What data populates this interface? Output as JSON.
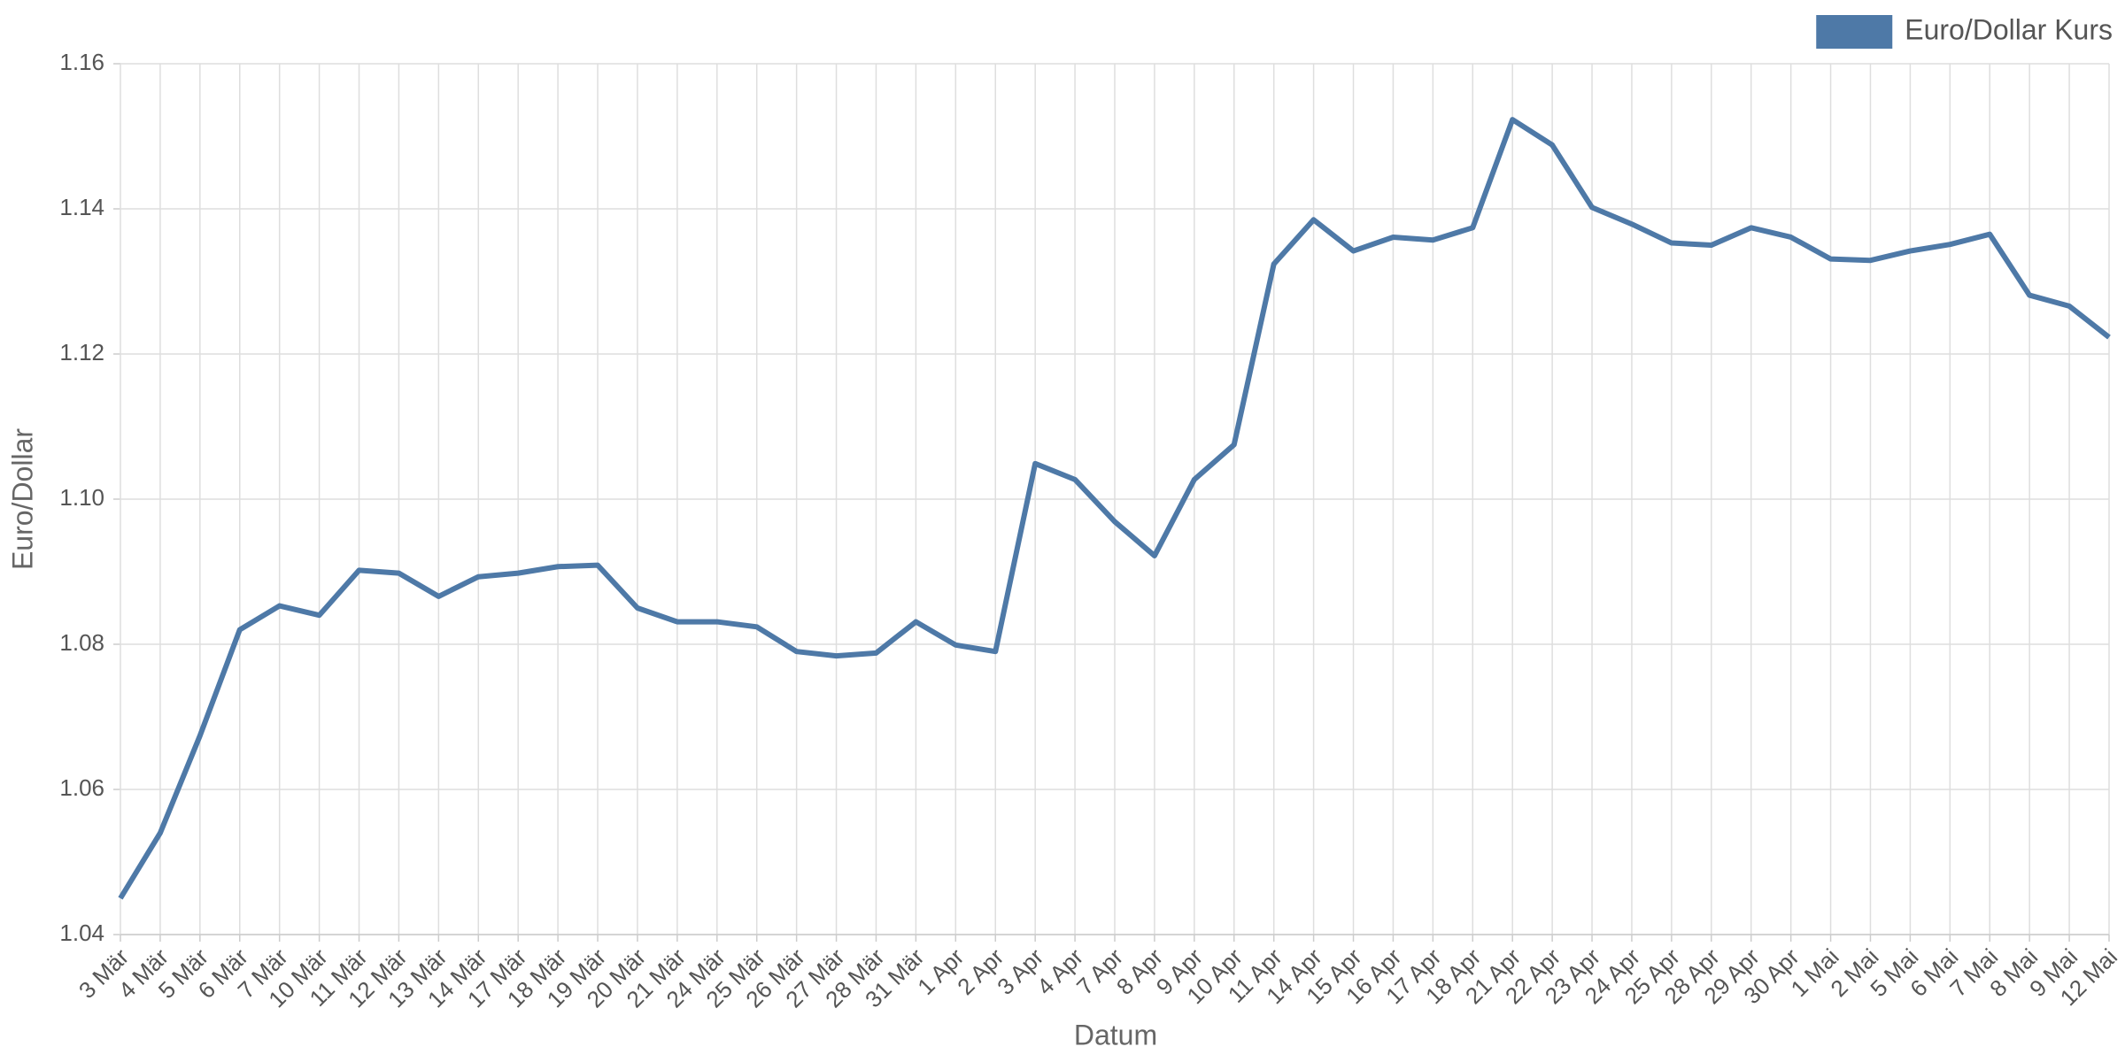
{
  "chart_data": {
    "type": "line",
    "x_label": "Datum",
    "y_label": "Euro/Dollar",
    "categories": [
      "3 Mär",
      "4 Mär",
      "5 Mär",
      "6 Mär",
      "7 Mär",
      "10 Mär",
      "11 Mär",
      "12 Mär",
      "13 Mär",
      "14 Mär",
      "17 Mär",
      "18 Mär",
      "19 Mär",
      "20 Mär",
      "21 Mär",
      "24 Mär",
      "25 Mär",
      "26 Mär",
      "27 Mär",
      "28 Mär",
      "31 Mär",
      "1 Apr",
      "2 Apr",
      "3 Apr",
      "4 Apr",
      "7 Apr",
      "8 Apr",
      "9 Apr",
      "10 Apr",
      "11 Apr",
      "14 Apr",
      "15 Apr",
      "16 Apr",
      "17 Apr",
      "18 Apr",
      "21 Apr",
      "22 Apr",
      "23 Apr",
      "24 Apr",
      "25 Apr",
      "28 Apr",
      "29 Apr",
      "30 Apr",
      "1 Mai",
      "2 Mai",
      "5 Mai",
      "6 Mai",
      "7 Mai",
      "8 Mai",
      "9 Mai",
      "12 Mai"
    ],
    "series": [
      {
        "name": "Euro/Dollar Kurs",
        "color": "#4e79a7",
        "values": [
          1.045,
          1.054,
          1.0674,
          1.082,
          1.0853,
          1.084,
          1.0902,
          1.0898,
          1.0866,
          1.0893,
          1.0898,
          1.0907,
          1.0909,
          1.085,
          1.0831,
          1.0831,
          1.0824,
          1.079,
          1.0784,
          1.0788,
          1.0831,
          1.0799,
          1.079,
          1.1049,
          1.1027,
          1.0969,
          1.0922,
          1.1027,
          1.1075,
          1.1324,
          1.1385,
          1.1342,
          1.1361,
          1.1357,
          1.1374,
          1.1523,
          1.1488,
          1.1402,
          1.1379,
          1.1353,
          1.135,
          1.1374,
          1.1361,
          1.1331,
          1.1329,
          1.1342,
          1.1351,
          1.1365,
          1.1281,
          1.1266,
          1.1223
        ]
      }
    ],
    "ylim": [
      1.04,
      1.16
    ],
    "yticks": [
      1.04,
      1.06,
      1.08,
      {
        "value": 1.1,
        "label": "1.10"
      },
      1.12,
      1.14,
      1.16
    ],
    "grid": true,
    "legend": "top-right"
  }
}
